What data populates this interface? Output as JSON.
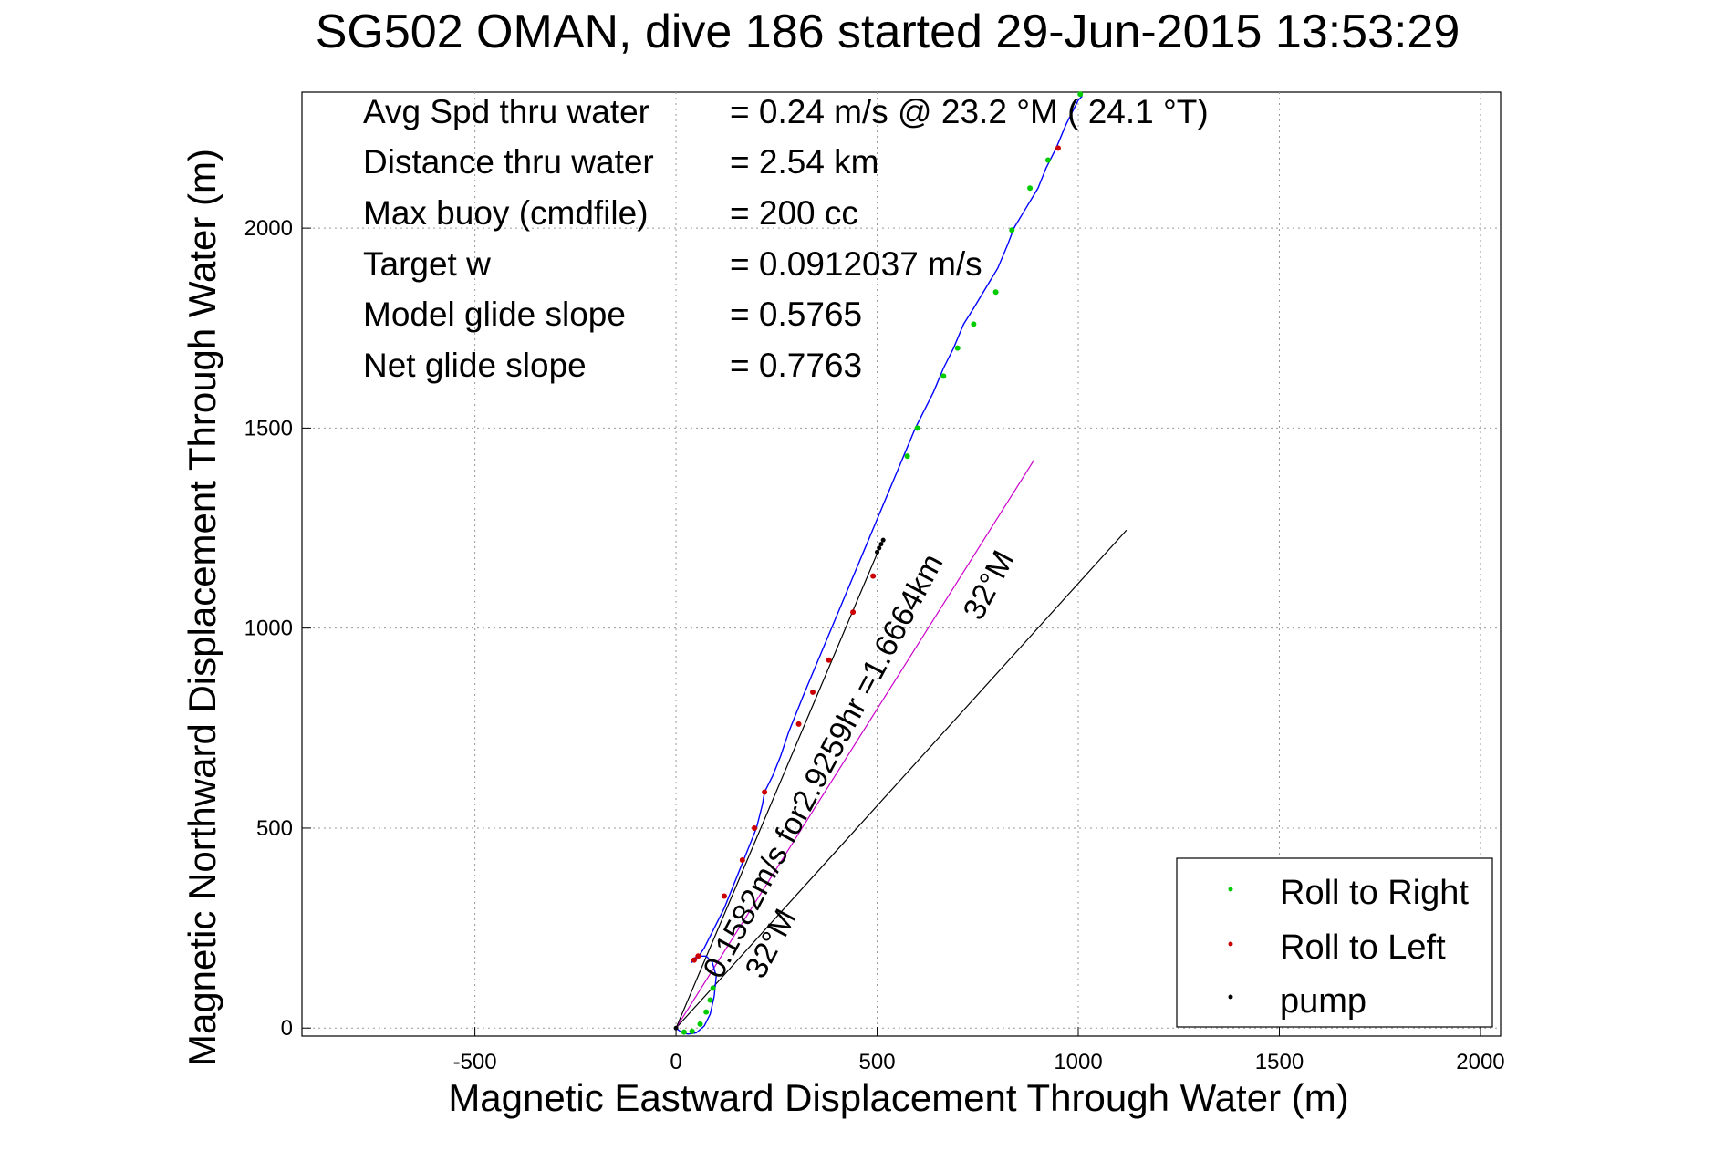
{
  "chart_data": {
    "type": "scatter",
    "title": "SG502 OMAN, dive 186 started 29-Jun-2015 13:53:29",
    "xlabel": "Magnetic Eastward Displacement Through Water (m)",
    "ylabel": "Magnetic Northward Displacement Through Water (m)",
    "xlim": [
      -930,
      2050
    ],
    "ylim": [
      -20,
      2340
    ],
    "xticks": [
      -500,
      0,
      500,
      1000,
      1500,
      2000
    ],
    "yticks": [
      0,
      500,
      1000,
      1500,
      2000
    ],
    "grid": true,
    "legend_position": "bottom-right",
    "stats": [
      {
        "label": "Avg Spd thru water",
        "value": "=  0.24 m/s @  23.2 °M ( 24.1 °T)"
      },
      {
        "label": "Distance thru water",
        "value": "=  2.54 km"
      },
      {
        "label": "Max buoy (cmdfile)",
        "value": "= 200 cc"
      },
      {
        "label": "Target w",
        "value": "= 0.0912037 m/s"
      },
      {
        "label": "Model glide slope",
        "value": "= 0.5765"
      },
      {
        "label": "Net glide slope",
        "value": "= 0.7763"
      }
    ],
    "annotations": {
      "current_text": "0.1582m/s for2.9259hr =1.6664km",
      "heading_text_1": "32°M",
      "heading_text_2": "32°M"
    },
    "legend": [
      {
        "name": "Roll to Right",
        "color": "#00cc00"
      },
      {
        "name": "Roll to Left",
        "color": "#cc0000"
      },
      {
        "name": "pump",
        "color": "#000000"
      }
    ],
    "track": {
      "name": "track",
      "color": "#0000ff",
      "x": [
        0,
        15,
        30,
        50,
        70,
        85,
        95,
        100,
        90,
        75,
        60,
        45,
        40,
        50,
        70,
        95,
        120,
        140,
        160,
        180,
        200,
        215,
        220,
        240,
        260,
        280,
        300,
        320,
        345,
        370,
        395,
        420,
        445,
        470,
        495,
        520,
        545,
        570,
        595,
        615,
        640,
        665,
        690,
        715,
        740,
        770,
        800,
        825,
        840,
        870,
        900,
        920,
        945,
        970,
        1000,
        1010
      ],
      "y": [
        0,
        -12,
        -15,
        -12,
        5,
        35,
        80,
        130,
        165,
        180,
        180,
        175,
        165,
        170,
        200,
        250,
        300,
        350,
        400,
        450,
        500,
        560,
        590,
        630,
        680,
        740,
        790,
        840,
        900,
        960,
        1020,
        1080,
        1140,
        1200,
        1260,
        1320,
        1380,
        1440,
        1500,
        1540,
        1590,
        1650,
        1700,
        1760,
        1800,
        1850,
        1900,
        1960,
        2000,
        2050,
        2100,
        2150,
        2200,
        2260,
        2320,
        2330
      ]
    },
    "roll_right_points": {
      "x": [
        20,
        40,
        60,
        75,
        85,
        92,
        575,
        600,
        665,
        700,
        740,
        795,
        835,
        880,
        925,
        1005
      ],
      "y": [
        -10,
        -8,
        10,
        40,
        70,
        100,
        1430,
        1500,
        1630,
        1700,
        1760,
        1840,
        1995,
        2100,
        2170,
        2335
      ]
    },
    "roll_left_points": {
      "x": [
        45,
        55,
        120,
        165,
        195,
        220,
        305,
        340,
        380,
        440,
        490,
        950
      ],
      "y": [
        170,
        180,
        330,
        420,
        500,
        590,
        760,
        840,
        920,
        1040,
        1130,
        2200
      ]
    },
    "pump_points": {
      "x": [
        0,
        500,
        505,
        510,
        515
      ],
      "y": [
        0,
        1190,
        1200,
        1210,
        1220
      ]
    },
    "current_line": {
      "x": [
        0,
        890
      ],
      "y": [
        0,
        1420
      ]
    },
    "heading_line": {
      "x": [
        0,
        1120
      ],
      "y": [
        0,
        1245
      ]
    },
    "pump_segment": {
      "x": [
        0,
        510
      ],
      "y": [
        0,
        1210
      ]
    }
  }
}
